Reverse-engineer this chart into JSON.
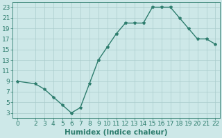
{
  "x": [
    0,
    2,
    3,
    4,
    5,
    6,
    7,
    8,
    9,
    10,
    11,
    12,
    13,
    14,
    15,
    16,
    17,
    18,
    19,
    20,
    21,
    22
  ],
  "y": [
    9,
    8.5,
    7.5,
    6,
    4.5,
    3,
    4,
    8.5,
    13,
    15.5,
    18,
    20,
    20,
    20,
    23,
    23,
    23,
    21,
    19,
    17,
    17,
    16
  ],
  "line_color": "#2e7d6e",
  "marker": "*",
  "marker_size": 3,
  "bg_color": "#cde8e8",
  "grid_color": "#aacccc",
  "xlabel": "Humidex (Indice chaleur)",
  "xlim": [
    -0.5,
    22.5
  ],
  "ylim": [
    2,
    24
  ],
  "yticks": [
    3,
    5,
    7,
    9,
    11,
    13,
    15,
    17,
    19,
    21,
    23
  ],
  "xticks": [
    0,
    2,
    3,
    4,
    5,
    6,
    7,
    8,
    9,
    10,
    11,
    12,
    13,
    14,
    15,
    16,
    17,
    18,
    19,
    20,
    21,
    22
  ],
  "tick_label_size": 6.5,
  "xlabel_fontsize": 7.5,
  "line_width": 1.0
}
